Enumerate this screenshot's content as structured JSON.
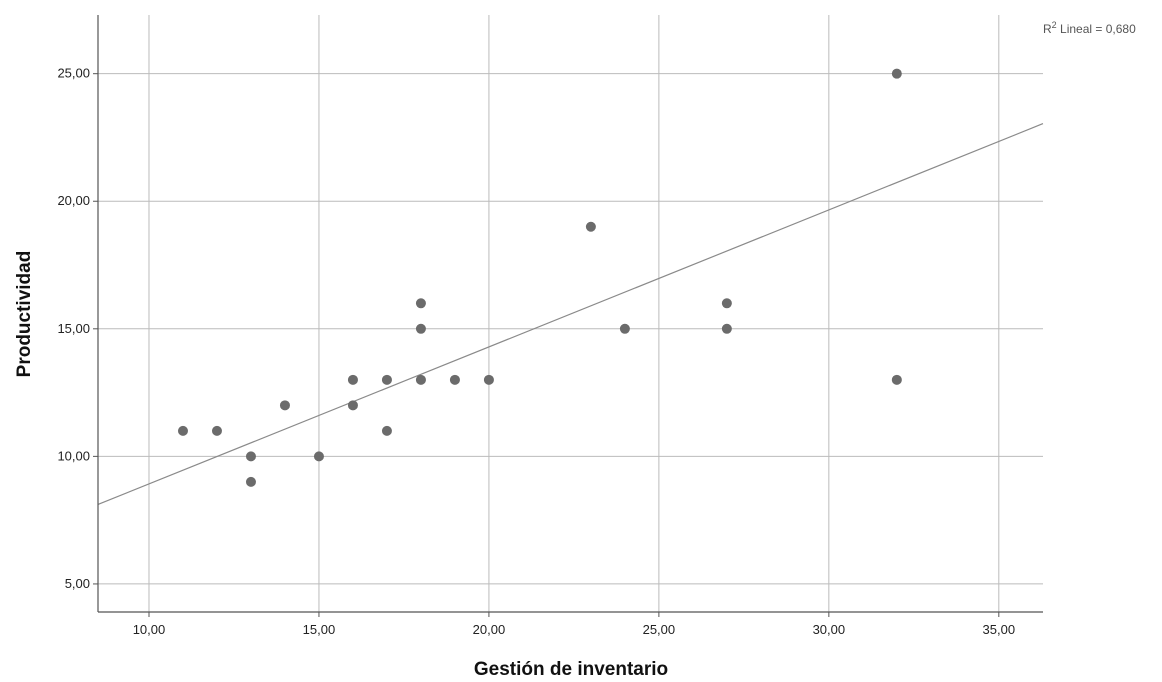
{
  "chart_data": {
    "type": "scatter",
    "title": "",
    "xlabel": "Gestión de inventario",
    "ylabel": "Productividad",
    "xlim": [
      8.5,
      36.3
    ],
    "ylim": [
      3.9,
      27.3
    ],
    "x_ticks": [
      10,
      15,
      20,
      25,
      30,
      35
    ],
    "y_ticks": [
      5,
      10,
      15,
      20,
      25
    ],
    "x_tick_labels": [
      "10,00",
      "15,00",
      "20,00",
      "25,00",
      "30,00",
      "35,00"
    ],
    "y_tick_labels": [
      "5,00",
      "10,00",
      "15,00",
      "20,00",
      "25,00"
    ],
    "grid": true,
    "points": [
      {
        "x": 11,
        "y": 11
      },
      {
        "x": 12,
        "y": 11
      },
      {
        "x": 13,
        "y": 10
      },
      {
        "x": 13,
        "y": 9
      },
      {
        "x": 14,
        "y": 12
      },
      {
        "x": 15,
        "y": 10
      },
      {
        "x": 16,
        "y": 13
      },
      {
        "x": 16,
        "y": 12
      },
      {
        "x": 17,
        "y": 13
      },
      {
        "x": 17,
        "y": 11
      },
      {
        "x": 18,
        "y": 16
      },
      {
        "x": 18,
        "y": 15
      },
      {
        "x": 18,
        "y": 13
      },
      {
        "x": 19,
        "y": 13
      },
      {
        "x": 20,
        "y": 13
      },
      {
        "x": 23,
        "y": 19
      },
      {
        "x": 24,
        "y": 15
      },
      {
        "x": 27,
        "y": 16
      },
      {
        "x": 27,
        "y": 15
      },
      {
        "x": 32,
        "y": 25
      },
      {
        "x": 32,
        "y": 13
      }
    ],
    "fit_line": {
      "slope": 0.537,
      "intercept": 3.55,
      "label_prefix": "R",
      "label_sup": "2",
      "label_suffix": " Lineal = 0,680"
    },
    "colors": {
      "point": "#6b6b6b",
      "grid": "#bbbbbb",
      "fit_line": "#8a8a8a",
      "axis": "#555555"
    }
  }
}
